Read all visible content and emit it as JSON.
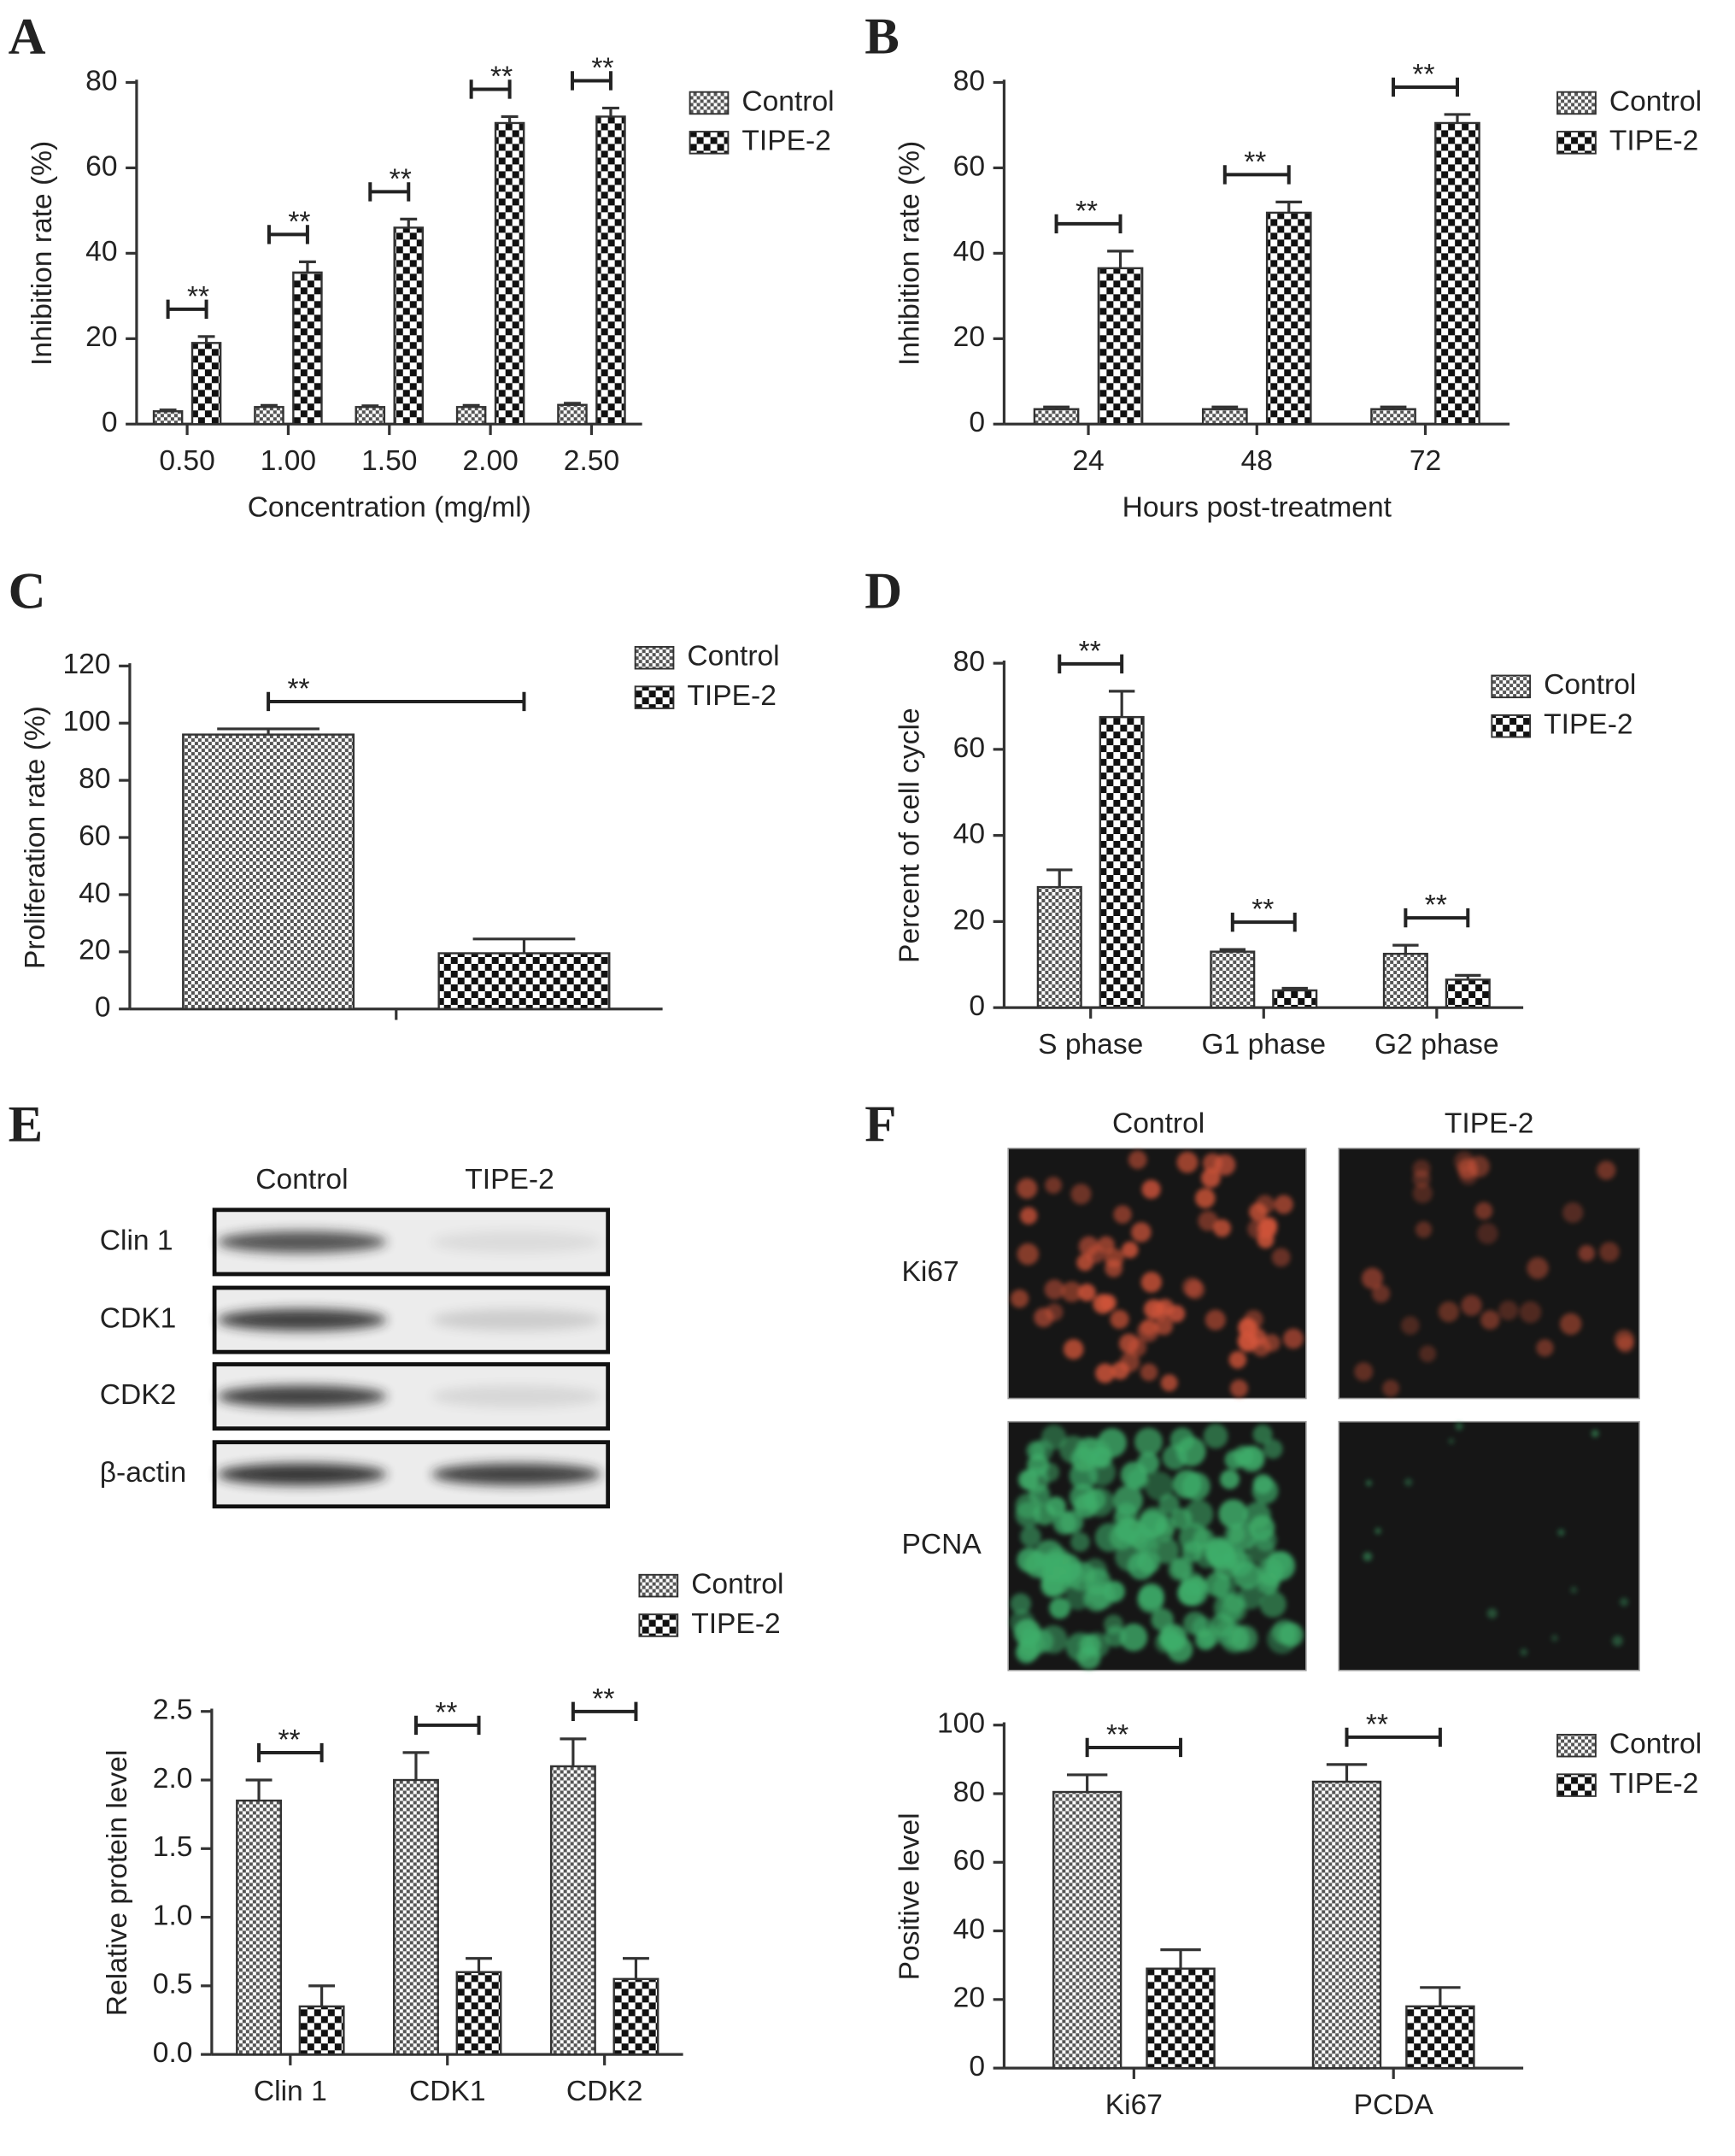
{
  "panel_labels": [
    "A",
    "B",
    "C",
    "D",
    "E",
    "F"
  ],
  "blot": {
    "columns": [
      "Control",
      "TIPE-2"
    ],
    "rows": [
      "Clin 1",
      "CDK1",
      "CDK2",
      "β-actin"
    ]
  },
  "images": {
    "columns": [
      "Control",
      "TIPE-2"
    ],
    "rows": [
      "Ki67",
      "PCNA"
    ]
  },
  "chart_data": [
    {
      "type": "bar",
      "xlabel": "Concentration (mg/ml)",
      "ylabel": "Inhibition rate (%)",
      "categories": [
        "0.50",
        "1.00",
        "1.50",
        "2.00",
        "2.50"
      ],
      "series": [
        {
          "name": "Control",
          "color": "#555555",
          "values": [
            3,
            4,
            4,
            4,
            4.5
          ],
          "errors": [
            0.3,
            0.4,
            0.3,
            0.4,
            0.4
          ]
        },
        {
          "name": "TIPE-2",
          "color": "#111111",
          "values": [
            19,
            35.5,
            46,
            70.5,
            72
          ],
          "errors": [
            1.5,
            2.5,
            2,
            1.5,
            2
          ]
        }
      ],
      "annotations": [
        "**",
        "**",
        "**",
        "**",
        "**"
      ],
      "ylim": [
        0,
        80
      ],
      "yticks": [
        0,
        20,
        40,
        60,
        80
      ],
      "legend": "upper right"
    },
    {
      "type": "bar",
      "xlabel": "Hours post-treatment",
      "ylabel": "Inhibition rate (%)",
      "categories": [
        "24",
        "48",
        "72"
      ],
      "series": [
        {
          "name": "Control",
          "color": "#555555",
          "values": [
            3.5,
            3.5,
            3.5
          ],
          "errors": [
            0.5,
            0.5,
            0.5
          ]
        },
        {
          "name": "TIPE-2",
          "color": "#111111",
          "values": [
            36.5,
            49.5,
            70.5
          ],
          "errors": [
            4,
            2.5,
            2
          ]
        }
      ],
      "annotations": [
        "**",
        "**",
        "**"
      ],
      "ylim": [
        0,
        80
      ],
      "yticks": [
        0,
        20,
        40,
        60,
        80
      ],
      "legend": "upper right"
    },
    {
      "type": "bar",
      "ylabel": "Proliferation rate (%)",
      "categories": [
        null
      ],
      "series": [
        {
          "name": "Control",
          "color": "#555555",
          "values": [
            96
          ],
          "errors": [
            2
          ]
        },
        {
          "name": "TIPE-2",
          "color": "#111111",
          "values": [
            19.5
          ],
          "errors": [
            5
          ]
        }
      ],
      "annotations": [
        "**"
      ],
      "ylim": [
        0,
        120
      ],
      "yticks": [
        0,
        20,
        40,
        60,
        80,
        100,
        120
      ],
      "legend": "upper right"
    },
    {
      "type": "bar",
      "ylabel": "Percent of cell cycle",
      "categories": [
        "S phase",
        "G1 phase",
        "G2 phase"
      ],
      "series": [
        {
          "name": "Control",
          "color": "#555555",
          "values": [
            28,
            13,
            12.5
          ],
          "errors": [
            4,
            0.5,
            2
          ]
        },
        {
          "name": "TIPE-2",
          "color": "#111111",
          "values": [
            67.5,
            4,
            6.5
          ],
          "errors": [
            6,
            0.5,
            1
          ]
        }
      ],
      "annotations": [
        "**",
        "**",
        "**"
      ],
      "ylim": [
        0,
        80
      ],
      "yticks": [
        0,
        20,
        40,
        60,
        80
      ],
      "legend": "upper right"
    },
    {
      "type": "bar",
      "ylabel": "Relative protein level",
      "categories": [
        "Clin 1",
        "CDK1",
        "CDK2"
      ],
      "series": [
        {
          "name": "Control",
          "color": "#555555",
          "values": [
            1.85,
            2.0,
            2.1
          ],
          "errors": [
            0.15,
            0.2,
            0.2
          ]
        },
        {
          "name": "TIPE-2",
          "color": "#111111",
          "values": [
            0.35,
            0.6,
            0.55
          ],
          "errors": [
            0.15,
            0.1,
            0.15
          ]
        }
      ],
      "annotations": [
        "**",
        "**",
        "**"
      ],
      "ylim": [
        0,
        2.5
      ],
      "yticks": [
        {
          "value": 0,
          "label": "0.0"
        },
        0.5,
        {
          "value": 1,
          "label": "1.0"
        },
        1.5,
        {
          "value": 2,
          "label": "2.0"
        },
        2.5
      ],
      "legend": "upper right"
    },
    {
      "type": "bar",
      "ylabel": "Positive level",
      "categories": [
        "Ki67",
        "PCDA"
      ],
      "series": [
        {
          "name": "Control",
          "color": "#555555",
          "values": [
            80.5,
            83.5
          ],
          "errors": [
            5,
            5
          ]
        },
        {
          "name": "TIPE-2",
          "color": "#111111",
          "values": [
            29,
            18
          ],
          "errors": [
            5.5,
            5.5
          ]
        }
      ],
      "annotations": [
        "**",
        "**"
      ],
      "ylim": [
        0,
        100
      ],
      "yticks": [
        0,
        20,
        40,
        60,
        80,
        100
      ],
      "legend": "upper right"
    }
  ]
}
